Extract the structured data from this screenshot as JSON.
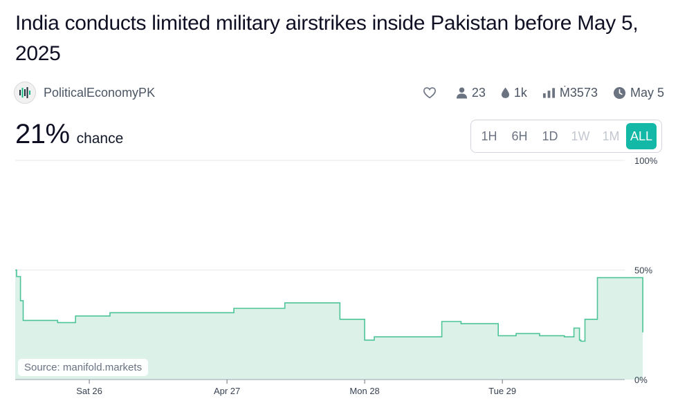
{
  "market": {
    "title": "India conducts limited military airstrikes inside Pakistan before May 5, 2025",
    "creator": "PoliticalEconomyPK",
    "traders": "23",
    "liquidity": "1k",
    "volume": "Ṁ3573",
    "close_date": "May 5",
    "probability": "21%",
    "probability_suffix": "chance"
  },
  "time_ranges": [
    {
      "label": "1H",
      "state": "enabled"
    },
    {
      "label": "6H",
      "state": "enabled"
    },
    {
      "label": "1D",
      "state": "enabled"
    },
    {
      "label": "1W",
      "state": "disabled"
    },
    {
      "label": "1M",
      "state": "disabled"
    },
    {
      "label": "ALL",
      "state": "active"
    }
  ],
  "source_label": "Source: manifold.markets",
  "colors": {
    "line": "#4cc497",
    "fill": "#dcf2e8",
    "accent": "#14b8a6"
  },
  "chart_data": {
    "type": "area",
    "step": true,
    "x_unit": "day (days after Sat 26, Apr 2025)",
    "x": [
      -0.538,
      -0.528,
      -0.5,
      -0.48,
      -0.3,
      -0.23,
      -0.11,
      -0.1,
      0.14,
      0.15,
      0.7,
      1.05,
      1.2,
      1.42,
      1.74,
      1.82,
      2.0,
      2.07,
      2.56,
      2.68,
      2.7,
      2.97,
      3.1,
      3.27,
      3.45,
      3.52,
      3.55,
      3.56,
      3.57,
      3.6,
      3.63,
      3.69,
      4.02
    ],
    "y": [
      50,
      47,
      36,
      27,
      27,
      26,
      26,
      29,
      29,
      30.5,
      30.5,
      32.5,
      32.5,
      35,
      35,
      27.5,
      18,
      19.5,
      26.5,
      26.5,
      25.5,
      20,
      21,
      20,
      19.5,
      23.5,
      23.5,
      18,
      17.5,
      27.5,
      27.5,
      46.5,
      21.5
    ],
    "x_ticks": [
      "Sat 26",
      "Apr 27",
      "Mon 28",
      "Tue 29"
    ],
    "x_tick_values": [
      0,
      1,
      2,
      3
    ],
    "xlim": [
      -0.538,
      4.16
    ],
    "y_ticks": [
      "0%",
      "50%",
      "100%"
    ],
    "y_tick_values": [
      0,
      50,
      100
    ],
    "ylim": [
      0,
      100
    ],
    "grid": true
  }
}
